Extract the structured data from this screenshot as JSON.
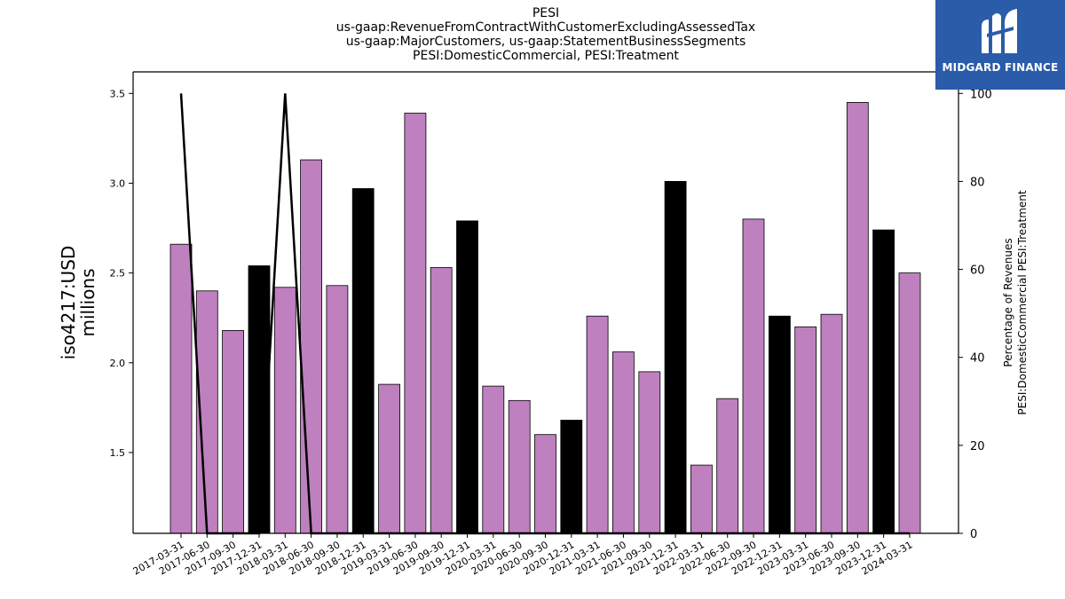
{
  "brand": {
    "name": "MIDGARD FINANCE",
    "accent": "#2a5caa"
  },
  "chart_data": {
    "type": "bar",
    "title_lines": [
      "PESI",
      "us-gaap:RevenueFromContractWithCustomerExcludingAssessedTax",
      "us-gaap:MajorCustomers, us-gaap:StatementBusinessSegments",
      "PESI:DomesticCommercial, PESI:Treatment"
    ],
    "ylabel": "iso4217:USD millions",
    "y2label_lines": [
      "Percentage of Revenues",
      "PESI:DomesticCommercial PESI:Treatment"
    ],
    "ylim": [
      1.05,
      3.62
    ],
    "yticks": [
      1.5,
      2.0,
      2.5,
      3.0,
      3.5
    ],
    "y2lim": [
      0,
      104.9
    ],
    "y2ticks": [
      0,
      20,
      40,
      60,
      80,
      100
    ],
    "categories": [
      "2017-03-31",
      "2017-06-30",
      "2017-09-30",
      "2017-12-31",
      "2018-03-31",
      "2018-06-30",
      "2018-09-30",
      "2018-12-31",
      "2019-03-31",
      "2019-06-30",
      "2019-09-30",
      "2019-12-31",
      "2020-03-31",
      "2020-06-30",
      "2020-09-30",
      "2020-12-31",
      "2021-03-31",
      "2021-06-30",
      "2021-09-30",
      "2021-12-31",
      "2022-03-31",
      "2022-06-30",
      "2022-09-30",
      "2022-12-31",
      "2023-03-31",
      "2023-06-30",
      "2023-09-30",
      "2023-12-31",
      "2024-03-31"
    ],
    "values": [
      2.66,
      2.4,
      2.18,
      2.54,
      2.42,
      3.13,
      2.43,
      2.97,
      1.88,
      3.39,
      2.53,
      2.79,
      1.87,
      1.79,
      1.6,
      1.68,
      2.26,
      2.06,
      1.95,
      3.01,
      1.43,
      1.8,
      2.8,
      2.26,
      2.2,
      2.27,
      3.45,
      2.74,
      2.5
    ],
    "q4_flags": [
      false,
      false,
      false,
      true,
      false,
      false,
      false,
      true,
      false,
      false,
      false,
      true,
      false,
      false,
      false,
      true,
      false,
      false,
      false,
      true,
      false,
      false,
      false,
      true,
      false,
      false,
      false,
      true,
      false
    ],
    "percent_line": [
      100,
      0,
      0,
      0,
      100,
      0,
      0,
      0,
      0,
      0,
      0,
      0,
      0,
      0,
      0,
      0,
      0,
      0,
      0,
      0,
      0,
      0,
      0,
      0,
      0,
      0,
      0,
      0,
      0
    ],
    "colors": {
      "bar": "#bf80bf",
      "bar_q4": "#000000",
      "line": "#000000"
    },
    "grid": false
  }
}
